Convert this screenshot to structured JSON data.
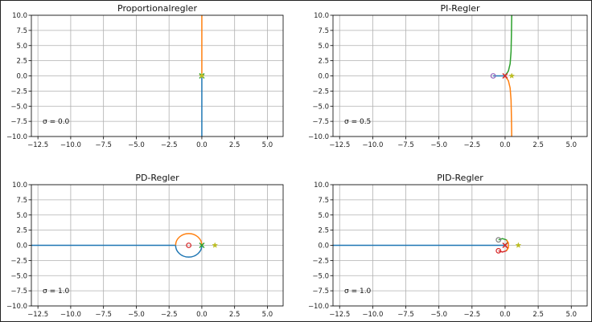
{
  "chart_data": [
    {
      "type": "line",
      "title": "Proportionalregler",
      "annotation": "σ = 0.0",
      "sigma": 0.0,
      "xlim": [
        -13,
        6.2
      ],
      "ylim": [
        -10,
        10
      ],
      "xticks": [
        -12.5,
        -10.0,
        -7.5,
        -5.0,
        -2.5,
        0.0,
        2.5,
        5.0
      ],
      "yticks": [
        10.0,
        7.5,
        5.0,
        2.5,
        0.0,
        -2.5,
        -5.0,
        -7.5,
        -10.0
      ],
      "grid": true,
      "series": [
        {
          "color": "#1f77b4",
          "points": [
            [
              0,
              0
            ],
            [
              0,
              -10
            ]
          ]
        },
        {
          "color": "#ff7f0e",
          "points": [
            [
              0,
              0
            ],
            [
              0,
              10
            ]
          ]
        }
      ],
      "markers": [
        {
          "kind": "x",
          "color": "#2ca02c",
          "x": 0,
          "y": 0
        },
        {
          "kind": "star",
          "color": "#bcbd22",
          "x": 0,
          "y": 0
        }
      ]
    },
    {
      "type": "line",
      "title": "PI-Regler",
      "annotation": "σ = 0.5",
      "sigma": 0.5,
      "xlim": [
        -13,
        6.2
      ],
      "ylim": [
        -10,
        10
      ],
      "xticks": [
        -12.5,
        -10.0,
        -7.5,
        -5.0,
        -2.5,
        0.0,
        2.5,
        5.0
      ],
      "yticks": [
        10.0,
        7.5,
        5.0,
        2.5,
        0.0,
        -2.5,
        -5.0,
        -7.5,
        -10.0
      ],
      "grid": true,
      "series": [
        {
          "color": "#1f77b4",
          "points": [
            [
              -0.9,
              0
            ],
            [
              -0.3,
              0
            ],
            [
              0,
              0
            ]
          ]
        },
        {
          "color": "#ff7f0e",
          "points": [
            [
              0,
              0
            ],
            [
              0.25,
              -0.8
            ],
            [
              0.38,
              -2
            ],
            [
              0.45,
              -4
            ],
            [
              0.48,
              -7
            ],
            [
              0.5,
              -10
            ]
          ]
        },
        {
          "color": "#2ca02c",
          "points": [
            [
              0,
              0
            ],
            [
              0.25,
              0.8
            ],
            [
              0.38,
              2
            ],
            [
              0.45,
              4
            ],
            [
              0.48,
              7
            ],
            [
              0.5,
              10
            ]
          ]
        }
      ],
      "markers": [
        {
          "kind": "o",
          "color": "#9467bd",
          "x": -0.9,
          "y": 0
        },
        {
          "kind": "x",
          "color": "#d62728",
          "x": 0,
          "y": 0
        },
        {
          "kind": "star",
          "color": "#bcbd22",
          "x": 0.5,
          "y": 0
        }
      ]
    },
    {
      "type": "line",
      "title": "PD-Regler",
      "annotation": "σ = 1.0",
      "sigma": 1.0,
      "xlim": [
        -13,
        6.2
      ],
      "ylim": [
        -10,
        10
      ],
      "xticks": [
        -12.5,
        -10.0,
        -7.5,
        -5.0,
        -2.5,
        0.0,
        2.5,
        5.0
      ],
      "yticks": [
        10.0,
        7.5,
        5.0,
        2.5,
        0.0,
        -2.5,
        -5.0,
        -7.5,
        -10.0
      ],
      "grid": true,
      "series": [
        {
          "color": "#1f77b4",
          "points": [
            [
              -13,
              0
            ],
            [
              -2,
              0
            ]
          ]
        },
        {
          "color": "#1f77b4",
          "ellipse": {
            "cx": -1,
            "cy": 0,
            "rx": 1,
            "ry": 1,
            "half": "lower"
          }
        },
        {
          "color": "#ff7f0e",
          "ellipse": {
            "cx": -1,
            "cy": 0,
            "rx": 1,
            "ry": 1,
            "half": "upper"
          }
        }
      ],
      "markers": [
        {
          "kind": "o",
          "color": "#d62728",
          "x": -1,
          "y": 0
        },
        {
          "kind": "x",
          "color": "#2ca02c",
          "x": 0,
          "y": 0
        },
        {
          "kind": "star",
          "color": "#bcbd22",
          "x": 1,
          "y": 0
        }
      ]
    },
    {
      "type": "line",
      "title": "PID-Regler",
      "annotation": "σ = 1.0",
      "sigma": 1.0,
      "xlim": [
        -13,
        6.2
      ],
      "ylim": [
        -10,
        10
      ],
      "xticks": [
        -12.5,
        -10.0,
        -7.5,
        -5.0,
        -2.5,
        0.0,
        2.5,
        5.0
      ],
      "yticks": [
        10.0,
        7.5,
        5.0,
        2.5,
        0.0,
        -2.5,
        -5.0,
        -7.5,
        -10.0
      ],
      "grid": true,
      "series": [
        {
          "color": "#1f77b4",
          "points": [
            [
              -13,
              0
            ],
            [
              0,
              0
            ]
          ]
        },
        {
          "color": "#2ca02c",
          "points": [
            [
              -0.5,
              0.9
            ],
            [
              -0.2,
              1.1
            ],
            [
              0.1,
              0.9
            ],
            [
              0.2,
              0.5
            ],
            [
              0,
              0
            ]
          ]
        },
        {
          "color": "#d62728",
          "points": [
            [
              -0.5,
              -0.9
            ],
            [
              -0.2,
              -1.1
            ],
            [
              0.1,
              -0.9
            ],
            [
              0.2,
              -0.5
            ],
            [
              0,
              0
            ]
          ]
        },
        {
          "color": "#ff7f0e",
          "points": [
            [
              0.1,
              0.9
            ],
            [
              0.25,
              0.4
            ],
            [
              0.25,
              -0.4
            ],
            [
              0.1,
              -0.9
            ]
          ]
        }
      ],
      "markers": [
        {
          "kind": "o",
          "color": "#7f7f7f",
          "x": -0.5,
          "y": 0.9
        },
        {
          "kind": "o",
          "color": "#d62728",
          "x": -0.5,
          "y": -0.9
        },
        {
          "kind": "x",
          "color": "#d62728",
          "x": 0,
          "y": 0
        },
        {
          "kind": "star",
          "color": "#bcbd22",
          "x": 1,
          "y": 0
        }
      ]
    }
  ]
}
